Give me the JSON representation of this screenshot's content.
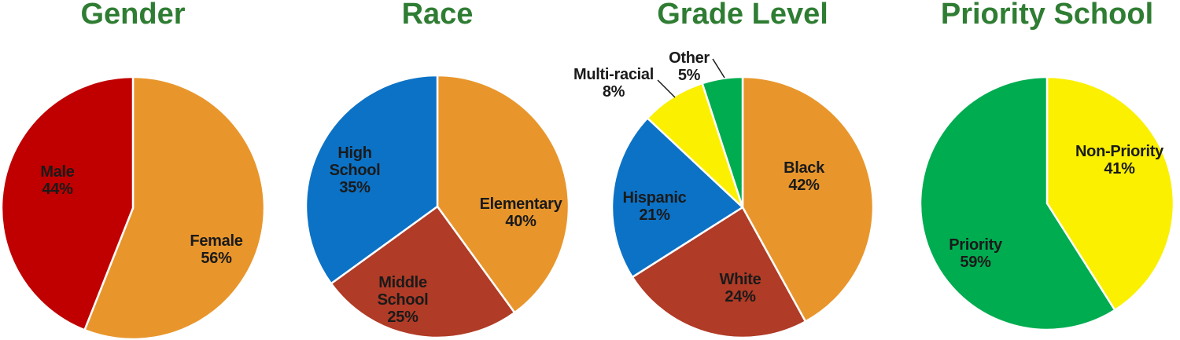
{
  "style": {
    "background": "#FFFFFF",
    "title_color": "#2F7D33",
    "label_color": "#1A1A1A",
    "separator_color": "#FFFFFF"
  },
  "chart_data": [
    {
      "type": "pie",
      "title": "Gender",
      "direction": "clockwise",
      "start_angle": "12-oclock",
      "slices": [
        {
          "label": "Female",
          "value": 56,
          "percent_text": "56%",
          "color": "#E8962C",
          "label_placement": "inside"
        },
        {
          "label": "Male",
          "value": 44,
          "percent_text": "44%",
          "color": "#C00000",
          "label_placement": "inside"
        }
      ]
    },
    {
      "type": "pie",
      "title": "Race",
      "direction": "clockwise",
      "start_angle": "12-oclock",
      "slices": [
        {
          "label": "Elementary",
          "value": 40,
          "percent_text": "40%",
          "color": "#E8962C",
          "label_placement": "inside"
        },
        {
          "label": "Middle School",
          "value": 25,
          "percent_text": "25%",
          "color": "#B03B26",
          "label_placement": "inside"
        },
        {
          "label": "High School",
          "value": 35,
          "percent_text": "35%",
          "color": "#0C72C6",
          "label_placement": "inside"
        }
      ]
    },
    {
      "type": "pie",
      "title": "Grade Level",
      "direction": "clockwise",
      "start_angle": "12-oclock",
      "slices": [
        {
          "label": "Black",
          "value": 42,
          "percent_text": "42%",
          "color": "#E8962C",
          "label_placement": "inside"
        },
        {
          "label": "White",
          "value": 24,
          "percent_text": "24%",
          "color": "#B03B26",
          "label_placement": "inside"
        },
        {
          "label": "Hispanic",
          "value": 21,
          "percent_text": "21%",
          "color": "#0C72C6",
          "label_placement": "inside"
        },
        {
          "label": "Multi-racial",
          "value": 8,
          "percent_text": "8%",
          "color": "#FAF000",
          "label_placement": "outside"
        },
        {
          "label": "Other",
          "value": 5,
          "percent_text": "5%",
          "color": "#00AC50",
          "label_placement": "outside"
        }
      ]
    },
    {
      "type": "pie",
      "title": "Priority School",
      "direction": "clockwise",
      "start_angle": "12-oclock",
      "slices": [
        {
          "label": "Non-Priority",
          "value": 41,
          "percent_text": "41%",
          "color": "#FAF000",
          "label_placement": "inside"
        },
        {
          "label": "Priority",
          "value": 59,
          "percent_text": "59%",
          "color": "#00AC50",
          "label_placement": "inside"
        }
      ]
    }
  ]
}
